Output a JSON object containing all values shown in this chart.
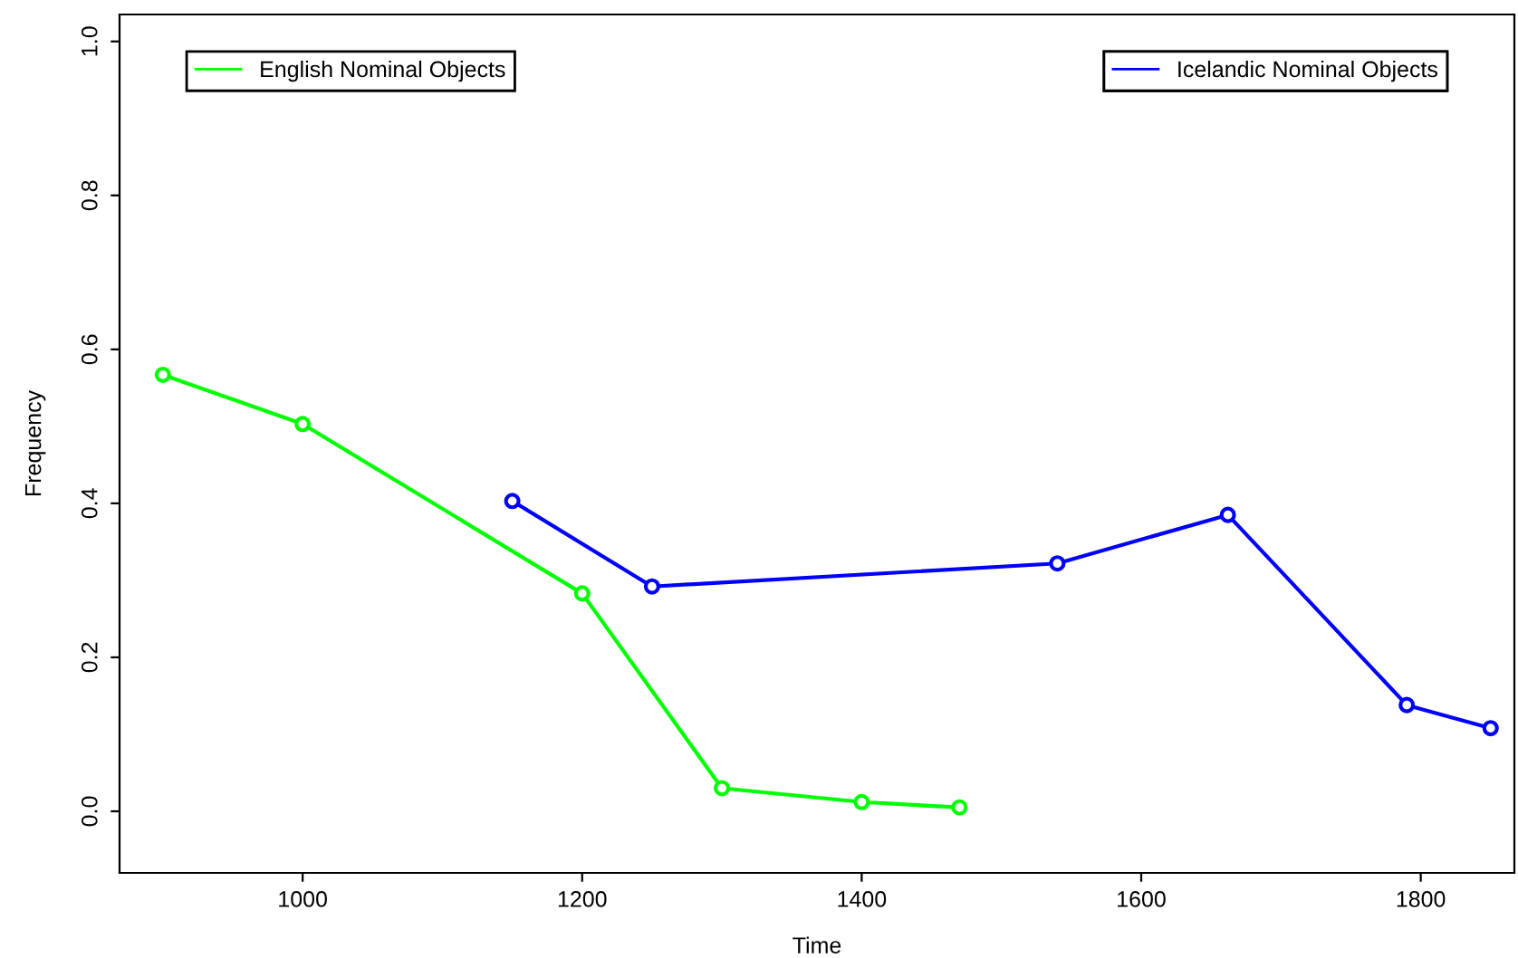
{
  "chart_data": {
    "type": "line",
    "xlabel": "Time",
    "ylabel": "Frequency",
    "xlim": [
      869,
      1867
    ],
    "ylim": [
      -0.08,
      1.035
    ],
    "xticks": [
      1000,
      1200,
      1400,
      1600,
      1800
    ],
    "yticks": [
      {
        "value": 0,
        "label": "0.0"
      },
      0.2,
      0.4,
      0.6,
      0.8,
      {
        "value": 1,
        "label": "1.0"
      }
    ],
    "marker": "circle",
    "line_style": "solid",
    "grid": false,
    "legend": "top",
    "series": [
      {
        "name": "English Nominal Objects",
        "color": "#00ff00",
        "x": [
          900,
          1000,
          1200,
          1300,
          1400,
          1470
        ],
        "values": [
          0.567,
          0.503,
          0.283,
          0.03,
          0.012,
          0.005
        ]
      },
      {
        "name": "Icelandic Nominal Objects",
        "color": "#0000ff",
        "x": [
          1150,
          1250,
          1540,
          1662,
          1790,
          1850
        ],
        "values": [
          0.403,
          0.292,
          0.322,
          0.385,
          0.138,
          0.108
        ]
      }
    ]
  }
}
